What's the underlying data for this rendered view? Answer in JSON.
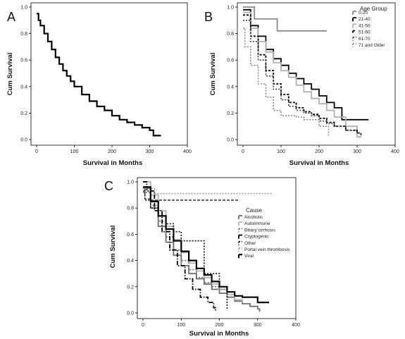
{
  "chart_data": [
    {
      "panel": "A",
      "type": "line",
      "step": true,
      "xlabel": "Survival in Months",
      "ylabel": "Cum Survival",
      "xlim": [
        0,
        400
      ],
      "ylim": [
        0,
        1.0
      ],
      "xticks": [
        0,
        100,
        200,
        300,
        400
      ],
      "yticks": [
        0.0,
        0.2,
        0.4,
        0.6,
        0.8,
        1.0
      ],
      "series": [
        {
          "color": "#000000",
          "dash": "",
          "width": 2.2,
          "x": [
            0,
            5,
            10,
            20,
            30,
            40,
            50,
            60,
            70,
            80,
            90,
            100,
            120,
            140,
            160,
            180,
            200,
            220,
            240,
            260,
            280,
            300,
            310,
            330
          ],
          "y": [
            0.95,
            0.9,
            0.86,
            0.8,
            0.74,
            0.68,
            0.62,
            0.57,
            0.52,
            0.48,
            0.44,
            0.4,
            0.34,
            0.29,
            0.25,
            0.22,
            0.18,
            0.15,
            0.13,
            0.11,
            0.09,
            0.07,
            0.03,
            0.03
          ]
        }
      ]
    },
    {
      "panel": "B",
      "type": "line",
      "step": true,
      "xlabel": "Survival in Months",
      "ylabel": "Cum Survival",
      "xlim": [
        0,
        400
      ],
      "ylim": [
        0,
        1.0
      ],
      "xticks": [
        0,
        100,
        200,
        300,
        400
      ],
      "yticks": [
        0.0,
        0.2,
        0.4,
        0.6,
        0.8,
        1.0
      ],
      "legend_title": "Age Group",
      "legend_position": "top-right",
      "series": [
        {
          "name": "0-20",
          "color": "#8c8c8c",
          "dash": "",
          "width": 1.8,
          "x": [
            0,
            20,
            30,
            90,
            220
          ],
          "y": [
            1.0,
            1.0,
            0.91,
            0.82,
            0.82
          ]
        },
        {
          "name": "21-40",
          "color": "#000000",
          "dash": "",
          "width": 1.8,
          "x": [
            0,
            20,
            40,
            60,
            80,
            100,
            120,
            140,
            160,
            180,
            200,
            220,
            240,
            260,
            300,
            330
          ],
          "y": [
            0.98,
            0.86,
            0.78,
            0.68,
            0.61,
            0.56,
            0.5,
            0.46,
            0.42,
            0.38,
            0.33,
            0.28,
            0.24,
            0.15,
            0.15,
            0.15
          ]
        },
        {
          "name": "41-50",
          "color": "#b0b0b0",
          "dash": "",
          "width": 1.8,
          "x": [
            0,
            20,
            40,
            60,
            80,
            100,
            120,
            140,
            160,
            180,
            200,
            220,
            240,
            270,
            300,
            310
          ],
          "y": [
            0.96,
            0.84,
            0.74,
            0.66,
            0.58,
            0.52,
            0.47,
            0.41,
            0.36,
            0.31,
            0.27,
            0.22,
            0.17,
            0.1,
            0.02,
            0.02
          ]
        },
        {
          "name": "51-60",
          "color": "#000000",
          "dash": "3,2",
          "width": 1.8,
          "x": [
            0,
            20,
            40,
            60,
            80,
            100,
            120,
            140,
            160,
            180,
            200,
            220,
            240,
            270,
            300,
            310
          ],
          "y": [
            0.94,
            0.78,
            0.64,
            0.52,
            0.42,
            0.34,
            0.28,
            0.24,
            0.21,
            0.19,
            0.16,
            0.13,
            0.1,
            0.07,
            0.05,
            0.02
          ]
        },
        {
          "name": "61-70",
          "color": "#444444",
          "dash": "2,2",
          "width": 1.6,
          "x": [
            0,
            20,
            40,
            60,
            80,
            100,
            120,
            140,
            160,
            180,
            200,
            220,
            240,
            270,
            300,
            310
          ],
          "y": [
            0.9,
            0.74,
            0.6,
            0.48,
            0.38,
            0.3,
            0.25,
            0.22,
            0.2,
            0.18,
            0.14,
            0.12,
            0.1,
            0.07,
            0.05,
            0.03
          ]
        },
        {
          "name": "71 and Older",
          "color": "#888888",
          "dash": "2,2",
          "width": 1.6,
          "x": [
            0,
            5,
            20,
            40,
            60,
            80,
            100,
            120,
            140,
            160,
            180,
            200,
            220,
            225
          ],
          "y": [
            0.84,
            0.7,
            0.56,
            0.42,
            0.32,
            0.22,
            0.18,
            0.18,
            0.17,
            0.15,
            0.15,
            0.1,
            0.1,
            0.03
          ]
        }
      ]
    },
    {
      "panel": "C",
      "type": "line",
      "step": true,
      "xlabel": "Survival in Months",
      "ylabel": "Cum Survival",
      "xlim": [
        0,
        400
      ],
      "ylim": [
        0,
        1.0
      ],
      "xticks": [
        0,
        100,
        200,
        300,
        400
      ],
      "yticks": [
        0.0,
        0.2,
        0.4,
        0.6,
        0.8,
        1.0
      ],
      "legend_title": "Cause",
      "legend_position": "right",
      "series": [
        {
          "name": "Alcoholic",
          "color": "#707070",
          "dash": "",
          "width": 1.8,
          "x": [
            0,
            20,
            40,
            60,
            80,
            100,
            120,
            140,
            160,
            180,
            200,
            220,
            240,
            260,
            280,
            300,
            305
          ],
          "y": [
            0.95,
            0.8,
            0.66,
            0.54,
            0.44,
            0.36,
            0.3,
            0.26,
            0.22,
            0.18,
            0.15,
            0.12,
            0.09,
            0.07,
            0.05,
            0.03,
            0.01
          ]
        },
        {
          "name": "Autoimmune",
          "color": "#b5b5b5",
          "dash": "",
          "width": 1.8,
          "x": [
            0,
            20,
            40,
            60,
            80,
            100,
            120,
            140,
            160,
            180,
            200,
            220,
            240,
            260
          ],
          "y": [
            1.0,
            0.9,
            0.78,
            0.66,
            0.56,
            0.46,
            0.38,
            0.32,
            0.27,
            0.22,
            0.18,
            0.14,
            0.1,
            0.08
          ]
        },
        {
          "name": "Biliary cirrhosis",
          "color": "#666666",
          "dash": "2,2",
          "width": 1.5,
          "x": [
            0,
            20,
            40,
            60,
            80,
            100,
            120,
            140,
            160,
            180,
            200,
            220
          ],
          "y": [
            0.92,
            0.82,
            0.7,
            0.58,
            0.48,
            0.4,
            0.33,
            0.27,
            0.23,
            0.2,
            0.18,
            0.14
          ]
        },
        {
          "name": "Cryptogenic",
          "color": "#000000",
          "dash": "6,2,1.5,2",
          "width": 1.8,
          "x": [
            0,
            10,
            30,
            50,
            70,
            90,
            110,
            130,
            150,
            170,
            185,
            190
          ],
          "y": [
            1.0,
            0.93,
            0.78,
            0.62,
            0.48,
            0.36,
            0.26,
            0.18,
            0.12,
            0.08,
            0.04,
            0.01
          ]
        },
        {
          "name": "Other",
          "color": "#111111",
          "dash": "2,2",
          "width": 1.6,
          "x": [
            0,
            5,
            20,
            40,
            60,
            80,
            100,
            120,
            140,
            160,
            180,
            200,
            220
          ],
          "y": [
            0.95,
            0.86,
            0.8,
            0.74,
            0.68,
            0.62,
            0.55,
            0.55,
            0.55,
            0.3,
            0.3,
            0.2,
            0.02
          ]
        },
        {
          "name": "Portal vein thrombosis",
          "color": "#999999",
          "dash": "2,2",
          "width": 1.4,
          "x": [
            0,
            30,
            340
          ],
          "y": [
            0.95,
            0.91,
            0.91
          ]
        },
        {
          "name": "Viral",
          "color": "#000000",
          "dash": "",
          "width": 2.2,
          "x": [
            0,
            20,
            40,
            60,
            80,
            100,
            120,
            140,
            160,
            180,
            200,
            220,
            240,
            260,
            280,
            300,
            330
          ],
          "y": [
            0.96,
            0.85,
            0.74,
            0.64,
            0.55,
            0.47,
            0.4,
            0.34,
            0.29,
            0.24,
            0.2,
            0.16,
            0.13,
            0.12,
            0.12,
            0.08,
            0.08
          ]
        }
      ],
      "extra_lines": [
        {
          "color": "#333333",
          "dash": "4,2",
          "width": 1.4,
          "x": [
            0,
            5,
            20,
            250
          ],
          "y": [
            0.93,
            0.87,
            0.86,
            0.86
          ]
        }
      ]
    }
  ]
}
